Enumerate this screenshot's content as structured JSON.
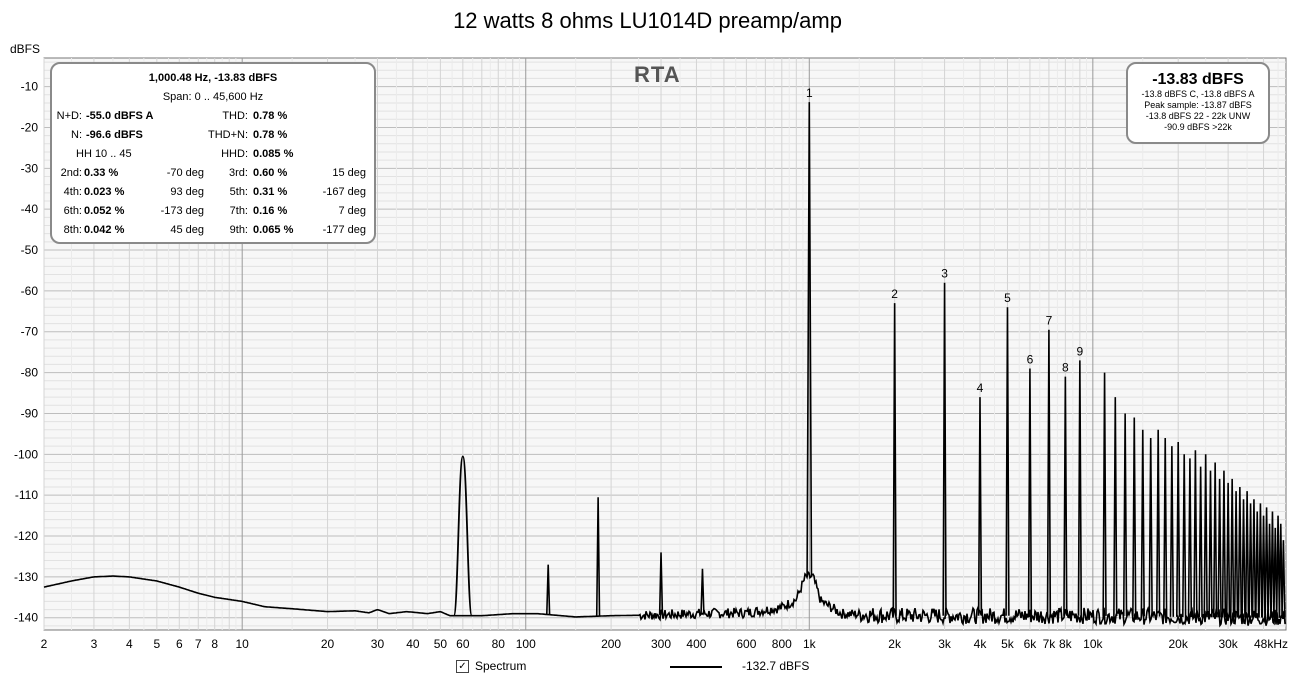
{
  "title": "12 watts 8 ohms LU1014D preamp/amp",
  "y_unit": "dBFS",
  "rta_label": "RTA",
  "stats": {
    "header": "1,000.48 Hz, -13.83 dBFS",
    "span": "Span: 0 .. 45,600 Hz",
    "nd_label": "N+D:",
    "nd_value": "-55.0 dBFS A",
    "thd_label": "THD:",
    "thd_value": "0.78 %",
    "n_label": "N:",
    "n_value": "-96.6 dBFS",
    "thdn_label": "THD+N:",
    "thdn_value": "0.78 %",
    "hh_label": "HH 10 .. 45",
    "hhd_label": "HHD:",
    "hhd_value": "0.085 %",
    "harmonics": [
      {
        "label": "2nd:",
        "pct": "0.33 %",
        "deg": "-70 deg",
        "label2": "3rd:",
        "pct2": "0.60 %",
        "deg2": "15 deg"
      },
      {
        "label": "4th:",
        "pct": "0.023 %",
        "deg": "93 deg",
        "label2": "5th:",
        "pct2": "0.31 %",
        "deg2": "-167 deg"
      },
      {
        "label": "6th:",
        "pct": "0.052 %",
        "deg": "-173 deg",
        "label2": "7th:",
        "pct2": "0.16 %",
        "deg2": "7 deg"
      },
      {
        "label": "8th:",
        "pct": "0.042 %",
        "deg": "45 deg",
        "label2": "9th:",
        "pct2": "0.065 %",
        "deg2": "-177 deg"
      }
    ]
  },
  "level_box": {
    "main": "-13.83 dBFS",
    "line1": "-13.8 dBFS C, -13.8 dBFS A",
    "line2": "Peak sample: -13.87 dBFS",
    "line3": "-13.8 dBFS 22 - 22k UNW",
    "line4": "-90.9 dBFS >22k"
  },
  "legend": {
    "checkbox_checked": true,
    "checkbox_glyph": "✓",
    "label": "Spectrum",
    "value": "-132.7 dBFS"
  },
  "chart_data": {
    "type": "line",
    "title": "12 watts 8 ohms LU1014D preamp/amp",
    "ylabel": "dBFS",
    "xscale": "log",
    "xlim_hz": [
      2,
      48000
    ],
    "ylim": [
      -143,
      -3
    ],
    "grid": true,
    "y_ticks": [
      -10,
      -20,
      -30,
      -40,
      -50,
      -60,
      -70,
      -80,
      -90,
      -100,
      -110,
      -120,
      -130,
      -140
    ],
    "x_ticks": [
      {
        "hz": 2,
        "label": "2"
      },
      {
        "hz": 3,
        "label": "3"
      },
      {
        "hz": 4,
        "label": "4"
      },
      {
        "hz": 5,
        "label": "5"
      },
      {
        "hz": 6,
        "label": "6"
      },
      {
        "hz": 7,
        "label": "7"
      },
      {
        "hz": 8,
        "label": "8"
      },
      {
        "hz": 10,
        "label": "10"
      },
      {
        "hz": 20,
        "label": "20"
      },
      {
        "hz": 30,
        "label": "30"
      },
      {
        "hz": 40,
        "label": "40"
      },
      {
        "hz": 50,
        "label": "50"
      },
      {
        "hz": 60,
        "label": "60"
      },
      {
        "hz": 80,
        "label": "80"
      },
      {
        "hz": 100,
        "label": "100"
      },
      {
        "hz": 200,
        "label": "200"
      },
      {
        "hz": 300,
        "label": "300"
      },
      {
        "hz": 400,
        "label": "400"
      },
      {
        "hz": 600,
        "label": "600"
      },
      {
        "hz": 800,
        "label": "800"
      },
      {
        "hz": 1000,
        "label": "1k"
      },
      {
        "hz": 2000,
        "label": "2k"
      },
      {
        "hz": 3000,
        "label": "3k"
      },
      {
        "hz": 4000,
        "label": "4k"
      },
      {
        "hz": 5000,
        "label": "5k"
      },
      {
        "hz": 6000,
        "label": "6k"
      },
      {
        "hz": 7000,
        "label": "7k"
      },
      {
        "hz": 8000,
        "label": "8k"
      },
      {
        "hz": 10000,
        "label": "10k"
      },
      {
        "hz": 20000,
        "label": "20k"
      },
      {
        "hz": 30000,
        "label": "30k"
      },
      {
        "hz": 48000,
        "label": "48kHz"
      }
    ],
    "baseline_curve": [
      [
        2,
        -132.5
      ],
      [
        2.5,
        -131
      ],
      [
        3,
        -130
      ],
      [
        3.5,
        -129.8
      ],
      [
        4,
        -130
      ],
      [
        5,
        -131
      ],
      [
        6,
        -132.5
      ],
      [
        7,
        -134
      ],
      [
        8,
        -135
      ],
      [
        10,
        -136
      ],
      [
        12,
        -137.3
      ],
      [
        15,
        -137.8
      ],
      [
        20,
        -138.5
      ],
      [
        25,
        -138.3
      ],
      [
        28,
        -138.8
      ],
      [
        30,
        -138
      ],
      [
        33,
        -139
      ],
      [
        38,
        -138.5
      ],
      [
        45,
        -139
      ],
      [
        50,
        -138.5
      ],
      [
        54,
        -139.5
      ],
      [
        70,
        -139.5
      ],
      [
        90,
        -139
      ],
      [
        110,
        -139
      ],
      [
        150,
        -139.8
      ],
      [
        200,
        -139.5
      ],
      [
        300,
        -139.3
      ],
      [
        400,
        -139
      ],
      [
        600,
        -138.8
      ],
      [
        800,
        -137.5
      ],
      [
        900,
        -135.5
      ],
      [
        970,
        -130
      ],
      [
        1030,
        -130
      ],
      [
        1100,
        -136
      ],
      [
        1300,
        -139
      ],
      [
        2000,
        -139.5
      ],
      [
        5000,
        -139.5
      ],
      [
        10000,
        -139.5
      ],
      [
        20000,
        -139.8
      ],
      [
        48000,
        -140
      ]
    ],
    "peaks": [
      {
        "hz": 60,
        "db": -100.5,
        "shape": "wide"
      },
      {
        "hz": 120,
        "db": -127
      },
      {
        "hz": 180,
        "db": -110.5
      },
      {
        "hz": 300,
        "db": -124
      },
      {
        "hz": 420,
        "db": -128
      },
      {
        "hz": 1000,
        "db": -13.8,
        "label": "1"
      },
      {
        "hz": 2000,
        "db": -63,
        "label": "2"
      },
      {
        "hz": 3000,
        "db": -58,
        "label": "3"
      },
      {
        "hz": 4000,
        "db": -86,
        "label": "4"
      },
      {
        "hz": 5000,
        "db": -64,
        "label": "5"
      },
      {
        "hz": 6000,
        "db": -79,
        "label": "6"
      },
      {
        "hz": 7000,
        "db": -69.5,
        "label": "7"
      },
      {
        "hz": 8000,
        "db": -81,
        "label": "8"
      },
      {
        "hz": 9000,
        "db": -77,
        "label": "9"
      },
      {
        "hz": 11000,
        "db": -80
      },
      {
        "hz": 12000,
        "db": -86
      },
      {
        "hz": 13000,
        "db": -90
      },
      {
        "hz": 14000,
        "db": -91
      },
      {
        "hz": 15000,
        "db": -94
      },
      {
        "hz": 16000,
        "db": -96
      },
      {
        "hz": 17000,
        "db": -94
      },
      {
        "hz": 18000,
        "db": -96
      },
      {
        "hz": 19000,
        "db": -98
      },
      {
        "hz": 20000,
        "db": -97
      },
      {
        "hz": 21000,
        "db": -100
      },
      {
        "hz": 22000,
        "db": -101
      },
      {
        "hz": 23000,
        "db": -99
      },
      {
        "hz": 24000,
        "db": -103
      },
      {
        "hz": 25000,
        "db": -100
      },
      {
        "hz": 26000,
        "db": -104
      },
      {
        "hz": 27000,
        "db": -102
      },
      {
        "hz": 28000,
        "db": -106
      },
      {
        "hz": 29000,
        "db": -104
      },
      {
        "hz": 30000,
        "db": -107
      },
      {
        "hz": 31000,
        "db": -106
      },
      {
        "hz": 32000,
        "db": -109
      },
      {
        "hz": 33000,
        "db": -108
      },
      {
        "hz": 34000,
        "db": -111
      },
      {
        "hz": 35000,
        "db": -109
      },
      {
        "hz": 36000,
        "db": -112
      },
      {
        "hz": 37000,
        "db": -111
      },
      {
        "hz": 38000,
        "db": -114
      },
      {
        "hz": 39000,
        "db": -112
      },
      {
        "hz": 40000,
        "db": -115
      },
      {
        "hz": 41000,
        "db": -113
      },
      {
        "hz": 42000,
        "db": -117
      },
      {
        "hz": 43000,
        "db": -114
      },
      {
        "hz": 44000,
        "db": -118
      },
      {
        "hz": 45000,
        "db": -115
      },
      {
        "hz": 46000,
        "db": -117
      },
      {
        "hz": 47000,
        "db": -121
      }
    ]
  }
}
